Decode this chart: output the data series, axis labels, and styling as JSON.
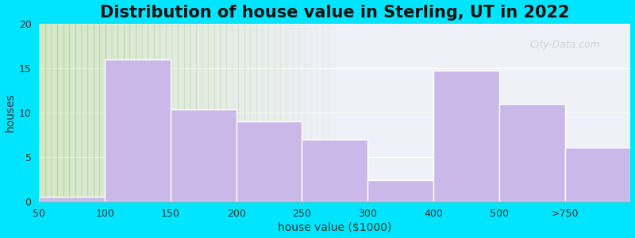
{
  "title": "Distribution of house value in Sterling, UT in 2022",
  "xlabel": "house value ($1000)",
  "ylabel": "houses",
  "tick_labels": [
    "50",
    "100",
    "150",
    "200",
    "250",
    "300",
    "400",
    "500",
    ">750"
  ],
  "bar_edges": [
    0,
    1,
    2,
    3,
    4,
    5,
    6,
    7,
    8,
    9
  ],
  "values": [
    0.6,
    16,
    10.4,
    9,
    7,
    2.4,
    14.7,
    11,
    6.1
  ],
  "bar_color": "#c9b8e8",
  "bar_edgecolor": "#ffffff",
  "background_outer": "#00e5ff",
  "background_inner": "#f0f0f8",
  "bg_green_left": "#d8edcc",
  "ylim": [
    0,
    20
  ],
  "yticks": [
    0,
    5,
    10,
    15,
    20
  ],
  "title_fontsize": 15,
  "axis_label_fontsize": 10,
  "tick_fontsize": 9,
  "watermark_text": "City-Data.com",
  "watermark_color": "#cccccc"
}
